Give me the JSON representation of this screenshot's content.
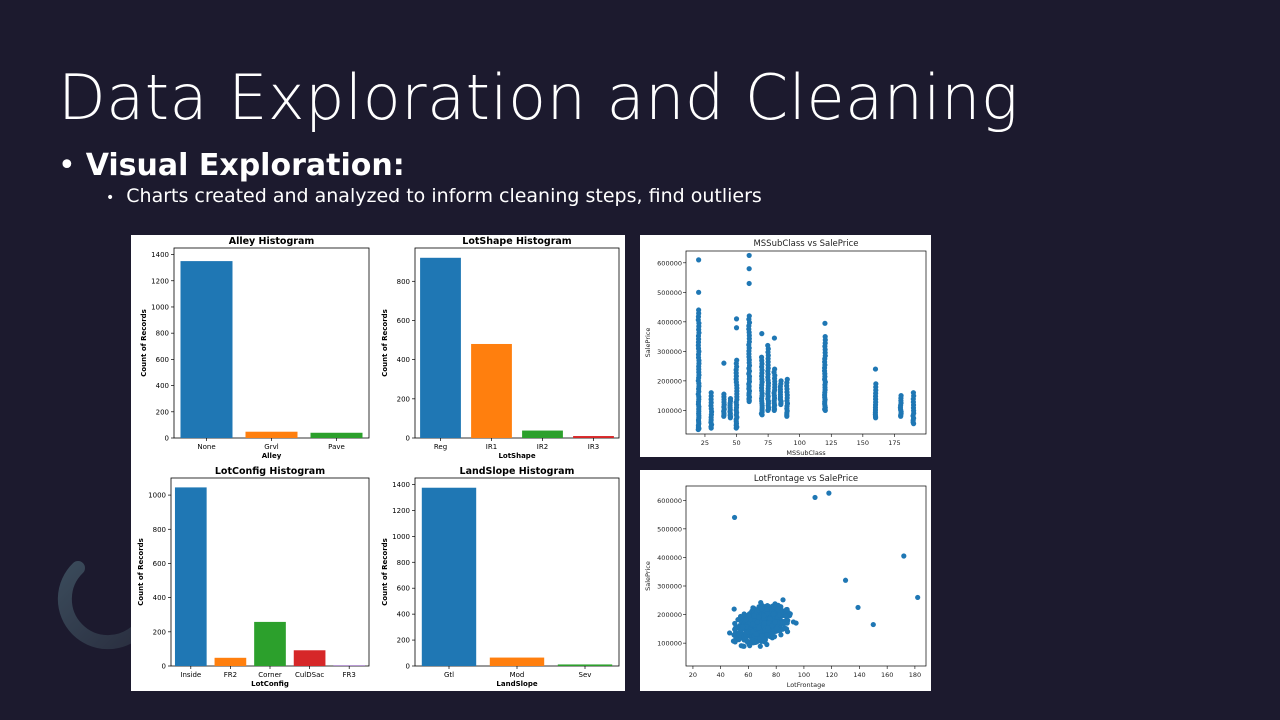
{
  "slide": {
    "title": "Data Exploration and Cleaning",
    "bullet1": "Visual Exploration:",
    "bullet2": "Charts created and analyzed to inform cleaning steps, find outliers"
  },
  "colors": {
    "background": "#1c1a2e",
    "palette": [
      "#1f77b4",
      "#ff7f0e",
      "#2ca02c",
      "#d62728",
      "#9467bd"
    ]
  },
  "chart_data": [
    {
      "id": "alley",
      "type": "bar",
      "title": "Alley Histogram",
      "xlabel": "Alley",
      "ylabel": "Count of Records",
      "categories": [
        "None",
        "Grvl",
        "Pave"
      ],
      "values": [
        1350,
        48,
        40
      ],
      "ylim": [
        0,
        1450
      ],
      "yticks": [
        0,
        200,
        400,
        600,
        800,
        1000,
        1200,
        1400
      ]
    },
    {
      "id": "lotshape",
      "type": "bar",
      "title": "LotShape Histogram",
      "xlabel": "LotShape",
      "ylabel": "Count of Records",
      "categories": [
        "Reg",
        "IR1",
        "IR2",
        "IR3"
      ],
      "values": [
        920,
        480,
        38,
        10
      ],
      "ylim": [
        0,
        970
      ],
      "yticks": [
        0,
        200,
        400,
        600,
        800
      ]
    },
    {
      "id": "lotconfig",
      "type": "bar",
      "title": "LotConfig Histogram",
      "xlabel": "LotConfig",
      "ylabel": "Count of Records",
      "categories": [
        "Inside",
        "FR2",
        "Corner",
        "CulDSac",
        "FR3"
      ],
      "values": [
        1045,
        48,
        258,
        92,
        4
      ],
      "ylim": [
        0,
        1100
      ],
      "yticks": [
        0,
        200,
        400,
        600,
        800,
        1000
      ]
    },
    {
      "id": "landslope",
      "type": "bar",
      "title": "LandSlope Histogram",
      "xlabel": "LandSlope",
      "ylabel": "Count of Records",
      "categories": [
        "Gtl",
        "Mod",
        "Sev"
      ],
      "values": [
        1375,
        65,
        12
      ],
      "ylim": [
        0,
        1450
      ],
      "yticks": [
        0,
        200,
        400,
        600,
        800,
        1000,
        1200,
        1400
      ]
    },
    {
      "id": "mssubclass",
      "type": "scatter",
      "title": "MSSubClass vs SalePrice",
      "xlabel": "MSSubClass",
      "ylabel": "SalePrice",
      "xlim": [
        10,
        200
      ],
      "ylim": [
        20000,
        640000
      ],
      "xticks": [
        25,
        50,
        75,
        100,
        125,
        150,
        175
      ],
      "yticks": [
        100000,
        200000,
        300000,
        400000,
        500000,
        600000
      ],
      "columns": [
        {
          "x": 20,
          "min": 35000,
          "max": 440000,
          "outliers": [
            500000,
            610000
          ]
        },
        {
          "x": 30,
          "min": 40000,
          "max": 160000
        },
        {
          "x": 40,
          "min": 80000,
          "max": 155000,
          "outliers": [
            260000
          ]
        },
        {
          "x": 45,
          "min": 75000,
          "max": 140000
        },
        {
          "x": 50,
          "min": 40000,
          "max": 270000,
          "outliers": [
            380000,
            410000
          ]
        },
        {
          "x": 60,
          "min": 130000,
          "max": 420000,
          "outliers": [
            530000,
            580000,
            625000
          ]
        },
        {
          "x": 70,
          "min": 85000,
          "max": 280000,
          "outliers": [
            360000
          ]
        },
        {
          "x": 75,
          "min": 100000,
          "max": 320000
        },
        {
          "x": 80,
          "min": 100000,
          "max": 240000,
          "outliers": [
            345000
          ]
        },
        {
          "x": 85,
          "min": 120000,
          "max": 200000
        },
        {
          "x": 90,
          "min": 80000,
          "max": 205000
        },
        {
          "x": 120,
          "min": 100000,
          "max": 350000,
          "outliers": [
            395000
          ]
        },
        {
          "x": 160,
          "min": 75000,
          "max": 190000,
          "outliers": [
            240000
          ]
        },
        {
          "x": 180,
          "min": 80000,
          "max": 150000
        },
        {
          "x": 190,
          "min": 55000,
          "max": 160000
        }
      ]
    },
    {
      "id": "lotfrontage",
      "type": "scatter",
      "title": "LotFrontage vs SalePrice",
      "xlabel": "LotFrontage",
      "ylabel": "SalePrice",
      "xlim": [
        15,
        188
      ],
      "ylim": [
        20000,
        650000
      ],
      "xticks": [
        20,
        40,
        60,
        80,
        100,
        120,
        140,
        160,
        180
      ],
      "yticks": [
        100000,
        200000,
        300000,
        400000,
        500000,
        600000
      ],
      "outliers": [
        [
          50,
          540000
        ],
        [
          108,
          610000
        ],
        [
          118,
          625000
        ],
        [
          172,
          405000
        ],
        [
          182,
          260000
        ],
        [
          150,
          165000
        ],
        [
          139,
          225000
        ],
        [
          130,
          320000
        ]
      ]
    }
  ]
}
